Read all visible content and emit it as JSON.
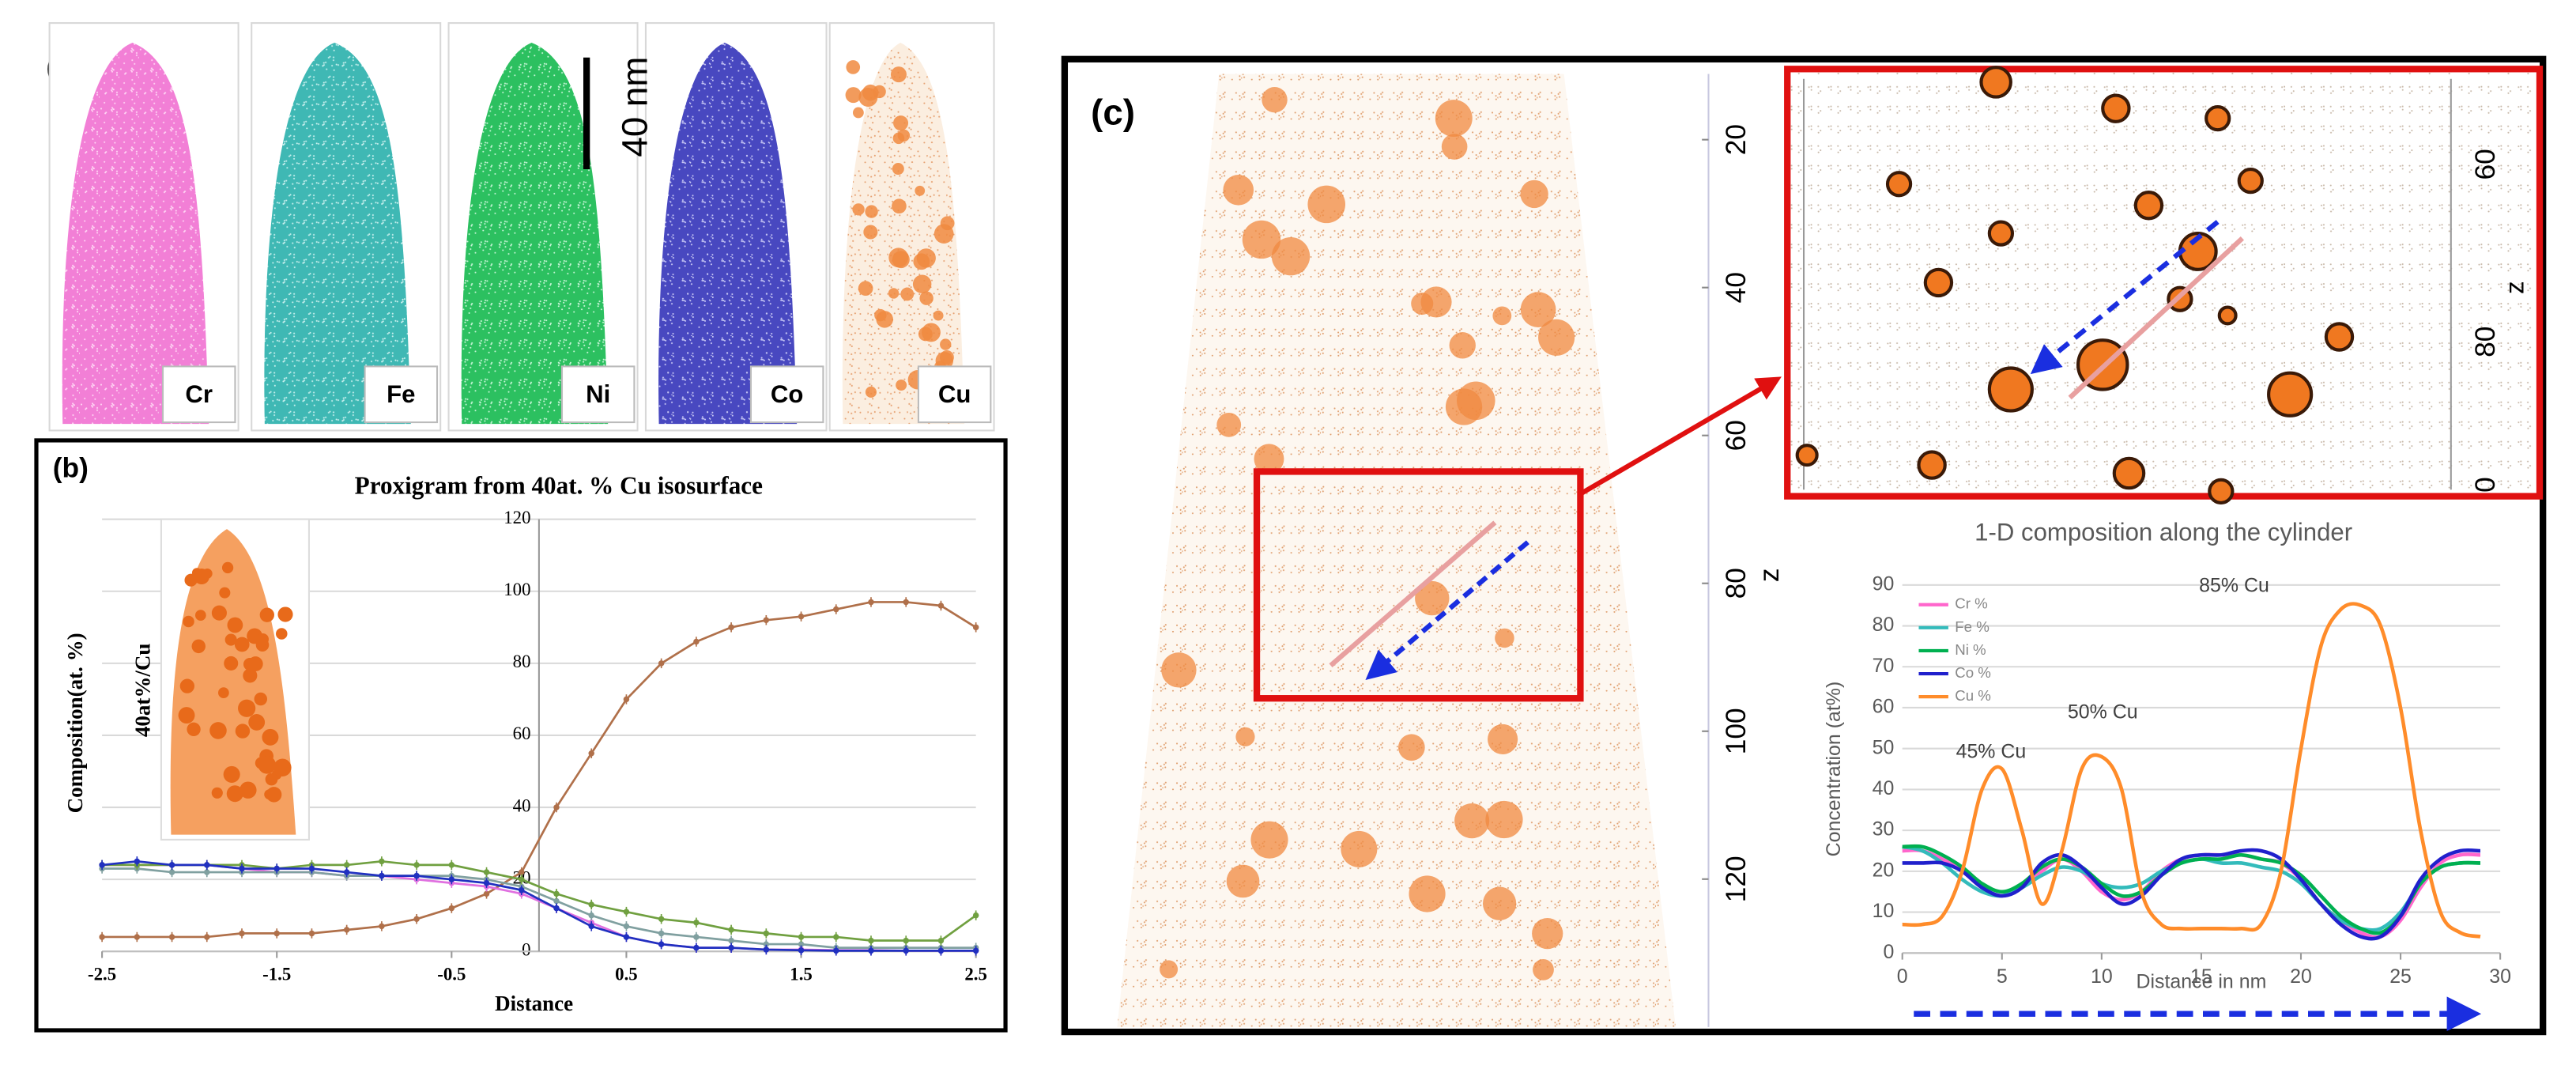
{
  "panel_a": {
    "label": "(a)",
    "elements": [
      "Cr",
      "Fe",
      "Ni",
      "Co",
      "Cu"
    ],
    "scale_bar": "40 nm"
  },
  "panel_b": {
    "label": "(b)",
    "inset_label": "40at%/Cu"
  },
  "panel_c": {
    "label": "(c)",
    "map_axis": {
      "label": "z",
      "ticks": [
        20,
        40,
        60,
        80,
        100,
        120
      ]
    },
    "inset_axis": {
      "label": "z",
      "ticks": [
        60,
        80,
        0
      ]
    }
  },
  "chart_data": [
    {
      "type": "line",
      "markers": true,
      "title": "Proxigram from 40at. % Cu isosurface",
      "xlabel": "Distance",
      "ylabel": "Composition(at. %)",
      "x": [
        -2.5,
        -2.3,
        -2.1,
        -1.9,
        -1.7,
        -1.5,
        -1.3,
        -1.1,
        -0.9,
        -0.7,
        -0.5,
        -0.3,
        -0.1,
        0.1,
        0.3,
        0.5,
        0.7,
        0.9,
        1.1,
        1.3,
        1.5,
        1.7,
        1.9,
        2.1,
        2.3,
        2.5
      ],
      "series": [
        {
          "color": "#b0704a",
          "values": [
            4,
            4,
            4,
            4,
            5,
            5,
            5,
            6,
            7,
            9,
            12,
            16,
            22,
            40,
            55,
            70,
            80,
            86,
            90,
            92,
            93,
            95,
            97,
            97,
            96,
            90
          ]
        },
        {
          "color": "#e070e0",
          "values": [
            24,
            24,
            24,
            24,
            23,
            22,
            22,
            21,
            21,
            20,
            19,
            18,
            16,
            12,
            8,
            4,
            2,
            1,
            1,
            0.5,
            0.5,
            0.3,
            0.3,
            0.2,
            0.2,
            0.2
          ]
        },
        {
          "color": "#80a0a0",
          "values": [
            23,
            23,
            22,
            22,
            22,
            22,
            22,
            21,
            21,
            21,
            21,
            20,
            18,
            14,
            10,
            7,
            5,
            4,
            3,
            2,
            2,
            1,
            1,
            1,
            1,
            1
          ]
        },
        {
          "color": "#70a040",
          "values": [
            24,
            24,
            24,
            24,
            24,
            23,
            24,
            24,
            25,
            24,
            24,
            22,
            20,
            16,
            13,
            11,
            9,
            8,
            6,
            5,
            4,
            4,
            3,
            3,
            3,
            10
          ]
        },
        {
          "color": "#2030c0",
          "values": [
            24,
            25,
            24,
            24,
            23,
            23,
            23,
            22,
            21,
            21,
            20,
            19,
            17,
            12,
            7,
            4,
            2,
            1,
            1,
            0.5,
            0.3,
            0.2,
            0.2,
            0.2,
            0.2,
            0.2
          ]
        }
      ],
      "xlim": [
        -2.5,
        2.5
      ],
      "ylim": [
        0,
        120
      ],
      "xticks": [
        -2.5,
        -1.5,
        -0.5,
        0.5,
        1.5,
        2.5
      ],
      "yticks": [
        0,
        20,
        40,
        60,
        80,
        100,
        120
      ],
      "grid": true
    },
    {
      "type": "line",
      "markers": false,
      "title": "1-D composition along the cylinder",
      "xlabel": "Distance in nm",
      "ylabel": "Concentration (at%)",
      "x": [
        0,
        1,
        2,
        3,
        4,
        5,
        6,
        7,
        8,
        9,
        10,
        11,
        12,
        13,
        14,
        15,
        16,
        17,
        18,
        19,
        20,
        21,
        22,
        23,
        24,
        25,
        26,
        27,
        28,
        29
      ],
      "series": [
        {
          "name": "Cr %",
          "color": "#ff66cc",
          "values": [
            25,
            25,
            23,
            20,
            16,
            14,
            16,
            20,
            23,
            20,
            15,
            13,
            15,
            20,
            23,
            24,
            24,
            24,
            23,
            22,
            18,
            12,
            8,
            5,
            4,
            8,
            16,
            22,
            24,
            24
          ]
        },
        {
          "name": "Fe %",
          "color": "#33bbbb",
          "values": [
            26,
            25,
            22,
            18,
            15,
            14,
            16,
            19,
            21,
            20,
            17,
            16,
            17,
            20,
            22,
            23,
            22,
            22,
            21,
            20,
            17,
            12,
            8,
            6,
            6,
            10,
            17,
            21,
            22,
            22
          ]
        },
        {
          "name": "Ni %",
          "color": "#00b050",
          "values": [
            26,
            26,
            24,
            21,
            17,
            15,
            17,
            21,
            23,
            21,
            17,
            14,
            15,
            19,
            22,
            23,
            23,
            24,
            23,
            22,
            19,
            14,
            9,
            6,
            5,
            9,
            17,
            21,
            22,
            22
          ]
        },
        {
          "name": "Co %",
          "color": "#2020cc",
          "values": [
            22,
            22,
            22,
            20,
            16,
            14,
            16,
            22,
            24,
            21,
            16,
            12,
            14,
            19,
            23,
            24,
            24,
            25,
            25,
            23,
            18,
            12,
            7,
            4,
            4,
            9,
            18,
            23,
            25,
            25
          ]
        },
        {
          "name": "Cu %",
          "color": "#ff8c2a",
          "values": [
            7,
            7,
            9,
            20,
            40,
            45,
            30,
            12,
            25,
            45,
            48,
            40,
            15,
            7,
            6,
            6,
            6,
            6,
            7,
            20,
            50,
            75,
            84,
            85,
            80,
            60,
            30,
            10,
            5,
            4
          ]
        }
      ],
      "annotations": [
        "45% Cu",
        "50% Cu",
        "85% Cu"
      ],
      "legend": "top-left",
      "xlim": [
        0,
        30
      ],
      "ylim": [
        0,
        90
      ],
      "xticks": [
        0,
        5,
        10,
        15,
        20,
        25,
        30
      ],
      "yticks": [
        0,
        10,
        20,
        30,
        40,
        50,
        60,
        70,
        80,
        90
      ],
      "grid": true
    }
  ]
}
